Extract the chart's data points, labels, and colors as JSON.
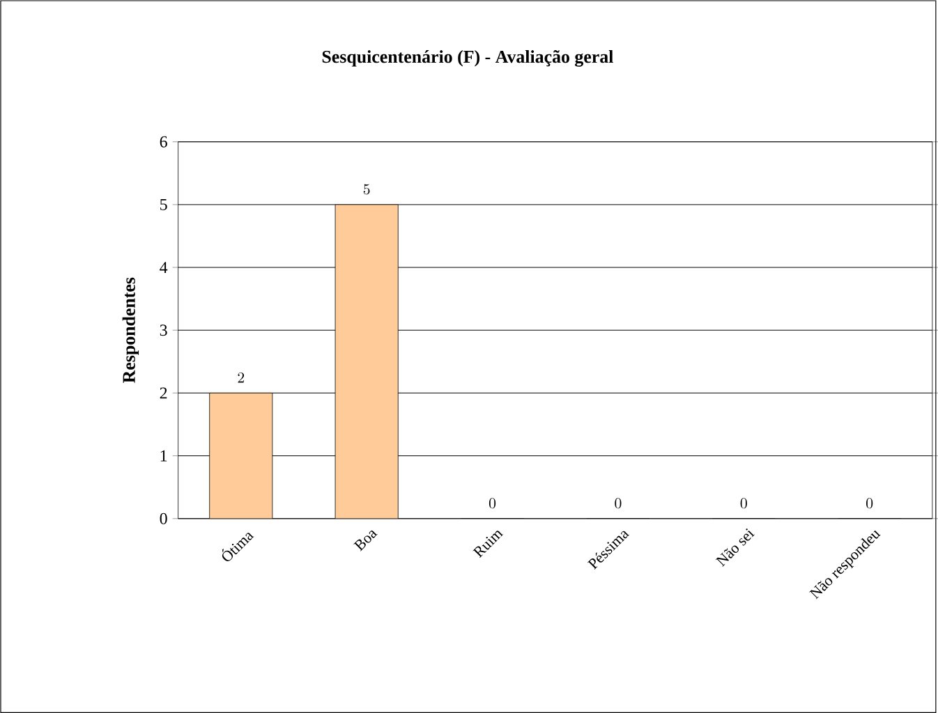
{
  "chart_data": {
    "type": "bar",
    "title": "Sesquicentenário (F) - Avaliação geral",
    "ylabel": "Respondentes",
    "categories": [
      "Ótima",
      "Boa",
      "Ruim",
      "Péssima",
      "Não sei",
      "Não respondeu"
    ],
    "values": [
      2,
      5,
      0,
      0,
      0,
      0
    ],
    "color": "#ffcc99",
    "ylim": [
      0,
      6
    ],
    "yticks": [
      0,
      1,
      2,
      3,
      4,
      5,
      6
    ],
    "grid": "y",
    "data_labels": true
  }
}
